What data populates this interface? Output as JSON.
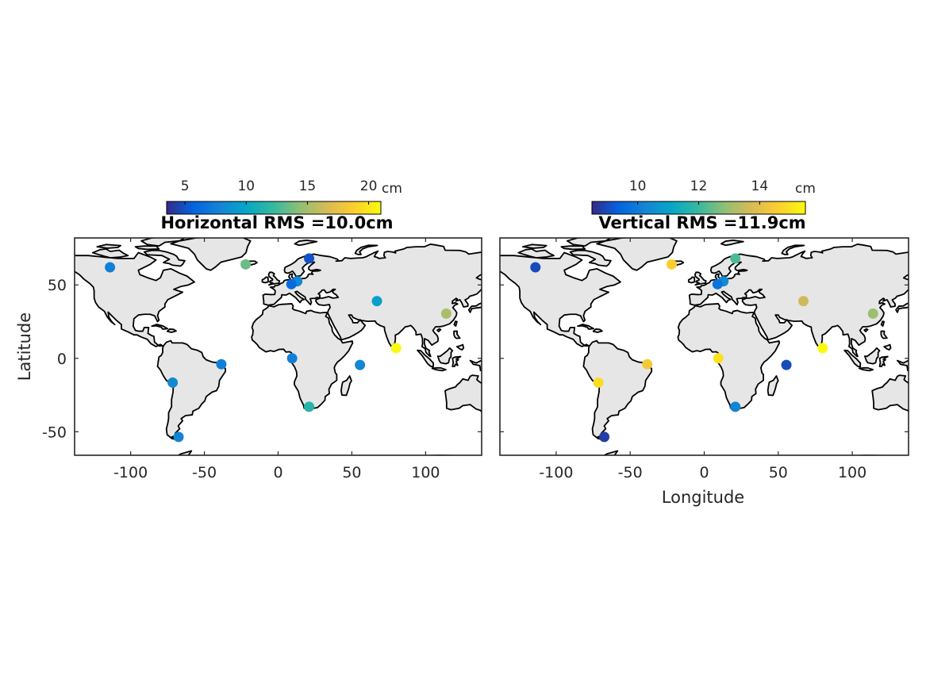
{
  "chart_data": [
    {
      "type": "scatter",
      "title": "Horizontal RMS =10.0cm",
      "xlabel": "",
      "ylabel": "Latitude",
      "xlim": [
        -138,
        138
      ],
      "ylim": [
        -66,
        82
      ],
      "xticks": [
        -100,
        -50,
        0,
        50,
        100
      ],
      "yticks": [
        -50,
        0,
        50
      ],
      "xtick_labels": [
        "-100",
        "-50",
        "0",
        "50",
        "100"
      ],
      "ytick_labels": [
        "-50",
        "0",
        "50"
      ],
      "colorbar": {
        "label": "cm",
        "range": [
          3.5,
          21
        ],
        "ticks": [
          5,
          10,
          15,
          20
        ],
        "tick_labels": [
          "5",
          "10",
          "15",
          "20"
        ]
      },
      "points": [
        {
          "lon": -114,
          "lat": 62,
          "value": 7.5
        },
        {
          "lon": -22,
          "lat": 64,
          "value": 13.5
        },
        {
          "lon": 21,
          "lat": 68,
          "value": 5.0
        },
        {
          "lon": 13,
          "lat": 52.5,
          "value": 8.0
        },
        {
          "lon": 9,
          "lat": 50.5,
          "value": 6.2
        },
        {
          "lon": 67,
          "lat": 39,
          "value": 9.5
        },
        {
          "lon": 114,
          "lat": 30.5,
          "value": 15.2
        },
        {
          "lon": 80,
          "lat": 7,
          "value": 21.0
        },
        {
          "lon": 9.5,
          "lat": 0,
          "value": 7.5
        },
        {
          "lon": 55.5,
          "lat": -4.5,
          "value": 8.0
        },
        {
          "lon": -38.5,
          "lat": -4,
          "value": 7.5
        },
        {
          "lon": -71.5,
          "lat": -16.5,
          "value": 8.2
        },
        {
          "lon": 21,
          "lat": -33,
          "value": 11.5
        },
        {
          "lon": -67.5,
          "lat": -53.5,
          "value": 7.8
        }
      ]
    },
    {
      "type": "scatter",
      "title": "Vertical RMS =11.9cm",
      "xlabel": "Longitude",
      "ylabel": "",
      "xlim": [
        -138,
        138
      ],
      "ylim": [
        -66,
        82
      ],
      "xticks": [
        -100,
        -50,
        0,
        50,
        100
      ],
      "yticks": [
        -50,
        0,
        50
      ],
      "xtick_labels": [
        "-100",
        "-50",
        "0",
        "50",
        "100"
      ],
      "colorbar": {
        "label": "cm",
        "range": [
          8.5,
          15.5
        ],
        "ticks": [
          10,
          12,
          14
        ],
        "tick_labels": [
          "10",
          "12",
          "14"
        ]
      },
      "points": [
        {
          "lon": -114,
          "lat": 62,
          "value": 9.0
        },
        {
          "lon": -22,
          "lat": 64,
          "value": 14.6
        },
        {
          "lon": 21,
          "lat": 68,
          "value": 12.2
        },
        {
          "lon": 13,
          "lat": 52.5,
          "value": 10.4
        },
        {
          "lon": 9,
          "lat": 50.5,
          "value": 9.8
        },
        {
          "lon": 67,
          "lat": 39,
          "value": 13.6
        },
        {
          "lon": 114,
          "lat": 30.5,
          "value": 13.0
        },
        {
          "lon": 80,
          "lat": 7,
          "value": 15.5
        },
        {
          "lon": 9.5,
          "lat": 0,
          "value": 15.0
        },
        {
          "lon": 55.5,
          "lat": -4.5,
          "value": 9.0
        },
        {
          "lon": -38.5,
          "lat": -4,
          "value": 14.4
        },
        {
          "lon": -71.5,
          "lat": -16.5,
          "value": 14.9
        },
        {
          "lon": 21,
          "lat": -33,
          "value": 10.2
        },
        {
          "lon": -67.5,
          "lat": -53.5,
          "value": 8.8
        }
      ]
    }
  ]
}
